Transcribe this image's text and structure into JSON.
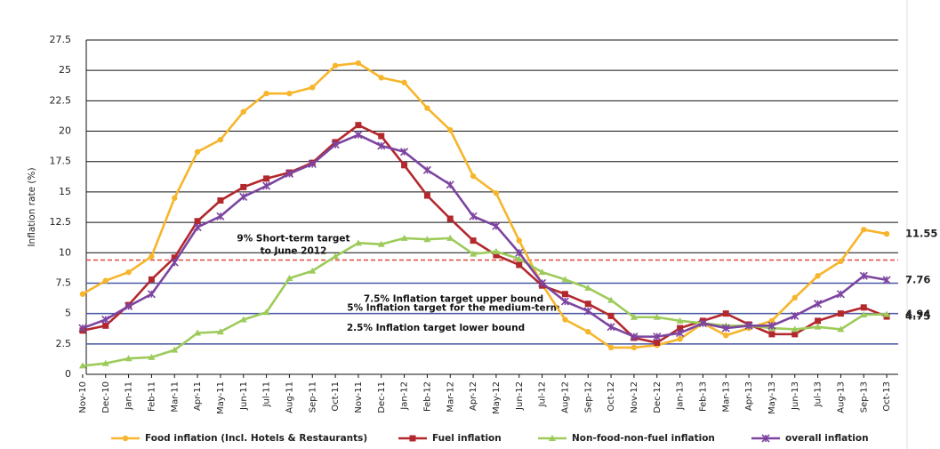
{
  "chart_data": {
    "type": "line",
    "y_label": "Inflation rate (%)",
    "categories": [
      "Nov-10",
      "Dec-10",
      "Jan-11",
      "Feb-11",
      "Mar-11",
      "Apr-11",
      "May-11",
      "Jun-11",
      "Jul-11",
      "Aug-11",
      "Sep-11",
      "Oct-11",
      "Nov-11",
      "Dec-11",
      "Jan-12",
      "Feb-12",
      "Mar-12",
      "Apr-12",
      "May-12",
      "Jun-12",
      "Jul-12",
      "Aug-12",
      "Sep-12",
      "Oct-12",
      "Nov-12",
      "Dec-12",
      "Jan-13",
      "Feb-13",
      "Mar-13",
      "Apr-13",
      "May-13",
      "Jun-13",
      "Jul-13",
      "Aug-13",
      "Sep-13",
      "Oct-13"
    ],
    "series": [
      {
        "name": "Food inflation (Incl. Hotels & Restaurants)",
        "color": "#f7b52c",
        "marker": "circle",
        "values": [
          6.6,
          7.7,
          8.4,
          9.7,
          14.5,
          18.3,
          19.3,
          21.6,
          23.1,
          23.1,
          23.6,
          25.4,
          25.6,
          24.4,
          24.0,
          21.9,
          20.1,
          16.3,
          14.9,
          11.0,
          7.4,
          4.5,
          3.5,
          2.2,
          2.2,
          2.4,
          2.9,
          4.2,
          3.2,
          3.8,
          4.4,
          6.3,
          8.1,
          9.3,
          11.9,
          11.55
        ]
      },
      {
        "name": "Fuel inflation",
        "color": "#b3282d",
        "marker": "square",
        "values": [
          3.6,
          4.0,
          5.7,
          7.8,
          9.6,
          12.6,
          14.3,
          15.4,
          16.1,
          16.6,
          17.4,
          19.1,
          20.5,
          19.6,
          17.2,
          14.7,
          12.8,
          11.0,
          9.8,
          9.0,
          7.3,
          6.6,
          5.8,
          4.8,
          3.0,
          2.6,
          3.8,
          4.4,
          5.0,
          4.1,
          3.3,
          3.3,
          4.4,
          5.0,
          5.5,
          4.75
        ]
      },
      {
        "name": "Non-food-non-fuel inflation",
        "color": "#9dcb5b",
        "marker": "triangle",
        "values": [
          0.7,
          0.9,
          1.3,
          1.4,
          2.0,
          3.4,
          3.5,
          4.5,
          5.1,
          7.9,
          8.5,
          9.7,
          10.8,
          10.7,
          11.2,
          11.1,
          11.2,
          9.9,
          10.1,
          9.5,
          8.4,
          7.8,
          7.1,
          6.1,
          4.7,
          4.7,
          4.4,
          4.2,
          4.0,
          4.0,
          3.8,
          3.7,
          3.9,
          3.7,
          4.9,
          4.94
        ]
      },
      {
        "name": "overall inflation",
        "color": "#7d45a0",
        "marker": "cross",
        "values": [
          3.8,
          4.5,
          5.6,
          6.6,
          9.2,
          12.1,
          13.0,
          14.6,
          15.5,
          16.5,
          17.3,
          18.9,
          19.7,
          18.8,
          18.3,
          16.8,
          15.6,
          13.0,
          12.2,
          10.0,
          7.5,
          6.0,
          5.2,
          3.9,
          3.1,
          3.1,
          3.4,
          4.2,
          3.8,
          4.0,
          4.0,
          4.8,
          5.8,
          6.6,
          8.1,
          7.76
        ]
      }
    ],
    "reference_lines": [
      {
        "value": 9.4,
        "color": "#e2463d",
        "dashed": true,
        "label": [
          "9% Short-term target",
          "to June 2012"
        ]
      },
      {
        "value": 7.5,
        "color": "#4b5aa6",
        "dashed": false,
        "label": [
          "7.5% Inflation target upper bound"
        ]
      },
      {
        "value": 5,
        "color": "#4b5aa6",
        "dashed": false,
        "label": [
          "5% Inflation target for the medium-term"
        ]
      },
      {
        "value": 2.5,
        "color": "#4b5aa6",
        "dashed": false,
        "label": [
          "2.5% Inflation target lower bound"
        ]
      }
    ],
    "ylim": [
      0,
      27.5
    ],
    "yticks": [
      0,
      2.5,
      5,
      7.5,
      10,
      12.5,
      15,
      17.5,
      20,
      22.5,
      25,
      27.5
    ],
    "grid": true,
    "legend": "bottom"
  }
}
